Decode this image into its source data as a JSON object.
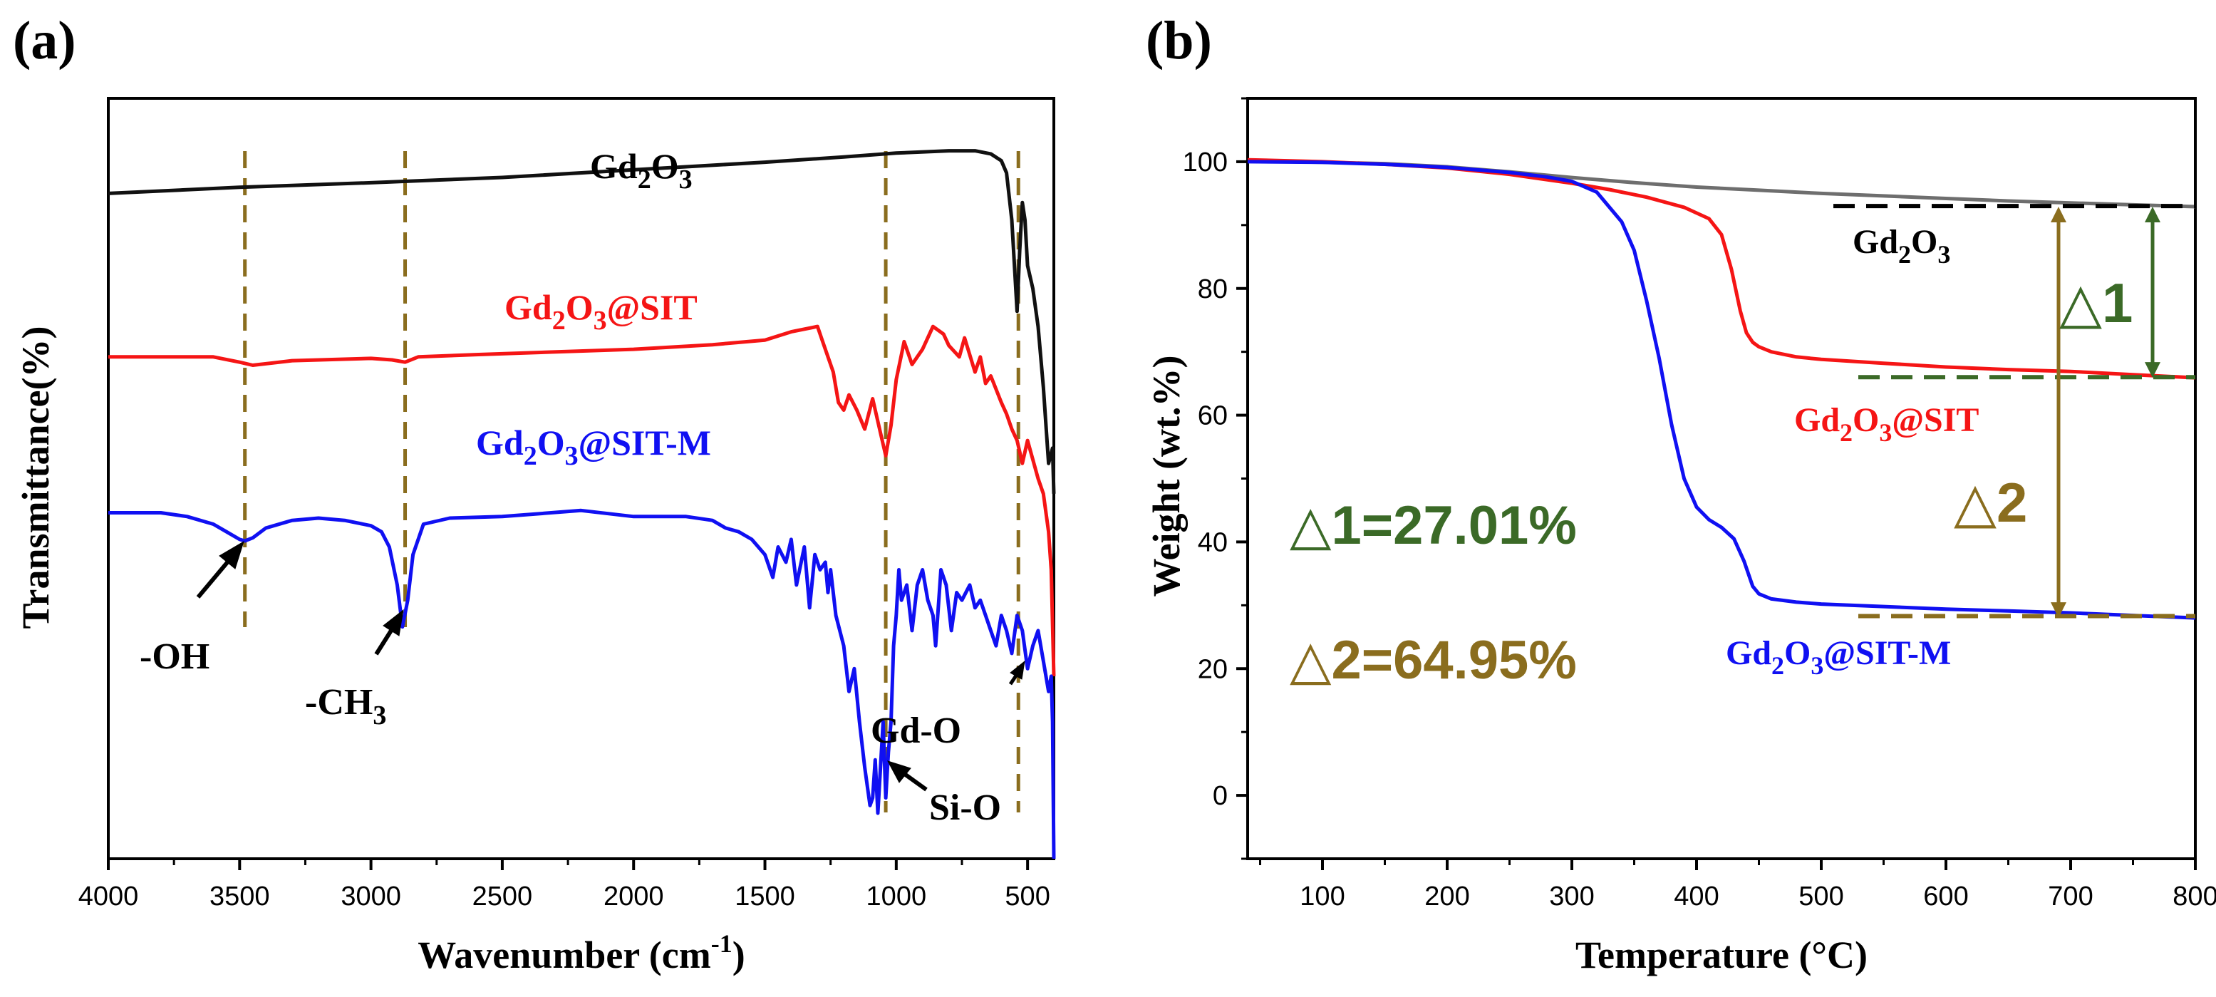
{
  "colors": {
    "black": "#111111",
    "red": "#f51515",
    "blue": "#1010f2",
    "gray": "#6e6e6e",
    "olive": "#8a6d1e",
    "green": "#3b6a27"
  },
  "chart_data": [
    {
      "type": "line",
      "panel_label": "(a)",
      "xlabel_main": "Wavenumber (cm",
      "xlabel_sup": "-1",
      "xlabel_end": ")",
      "ylabel": "Transmittance(%)",
      "xlim": [
        4000,
        400
      ],
      "x_reversed": true,
      "ylim": [
        0,
        100
      ],
      "y_ticks_shown": false,
      "xticks": [
        "4000",
        "3500",
        "3000",
        "2500",
        "2000",
        "1500",
        "1000",
        "500"
      ],
      "xtick_values": [
        4000,
        3500,
        3000,
        2500,
        2000,
        1500,
        1000,
        500
      ],
      "series": [
        {
          "name": "Gd2O3",
          "label_main": "Gd",
          "label_sub1": "2",
          "label_mid": "O",
          "label_sub2": "3",
          "label_end": "",
          "color_key": "black",
          "x": [
            4000,
            3500,
            3000,
            2500,
            2000,
            1500,
            1200,
            1000,
            800,
            700,
            640,
            600,
            580,
            560,
            540,
            530,
            520,
            510,
            500,
            480,
            460,
            440,
            420,
            405,
            400
          ],
          "y": [
            87.5,
            88.3,
            88.9,
            89.6,
            90.6,
            91.6,
            92.3,
            92.8,
            93.1,
            93.1,
            92.7,
            91.8,
            90.2,
            84,
            72,
            80,
            86.3,
            84,
            78,
            75,
            70,
            62,
            52,
            54,
            48
          ]
        },
        {
          "name": "Gd2O3@SIT",
          "label_main": "Gd",
          "label_sub1": "2",
          "label_mid": "O",
          "label_sub2": "3",
          "label_end": "@SIT",
          "color_key": "red",
          "x": [
            4000,
            3800,
            3600,
            3500,
            3450,
            3300,
            3000,
            2920,
            2870,
            2820,
            2600,
            2000,
            1700,
            1500,
            1400,
            1300,
            1280,
            1240,
            1220,
            1200,
            1180,
            1150,
            1120,
            1090,
            1060,
            1040,
            1020,
            1000,
            970,
            940,
            900,
            860,
            820,
            800,
            760,
            740,
            700,
            680,
            660,
            640,
            600,
            580,
            560,
            540,
            520,
            500,
            480,
            460,
            440,
            420,
            410,
            400
          ],
          "y": [
            66,
            66,
            66,
            65.3,
            64.9,
            65.5,
            65.8,
            65.6,
            65.3,
            66,
            66.3,
            67,
            67.6,
            68.2,
            69.3,
            70,
            68,
            64,
            60,
            59,
            61,
            59,
            56.5,
            60.5,
            56,
            53,
            57,
            63,
            68,
            65,
            67,
            70,
            69,
            67.5,
            66,
            68.5,
            64,
            66,
            62.5,
            63.5,
            60,
            58.5,
            56.5,
            55,
            52,
            55,
            52.5,
            50,
            48,
            43,
            38,
            24
          ]
        },
        {
          "name": "Gd2O3@SIT-M",
          "label_main": "Gd",
          "label_sub1": "2",
          "label_mid": "O",
          "label_sub2": "3",
          "label_end": "@SIT-M",
          "color_key": "blue",
          "x": [
            4000,
            3800,
            3700,
            3600,
            3550,
            3500,
            3480,
            3450,
            3400,
            3300,
            3200,
            3100,
            3000,
            2960,
            2930,
            2900,
            2880,
            2860,
            2840,
            2800,
            2700,
            2500,
            2200,
            2000,
            1800,
            1700,
            1650,
            1600,
            1550,
            1500,
            1470,
            1450,
            1420,
            1400,
            1380,
            1350,
            1330,
            1310,
            1290,
            1270,
            1260,
            1250,
            1230,
            1200,
            1180,
            1160,
            1140,
            1120,
            1100,
            1090,
            1080,
            1070,
            1060,
            1050,
            1040,
            1030,
            1020,
            1010,
            1000,
            990,
            980,
            960,
            940,
            920,
            900,
            880,
            860,
            850,
            830,
            810,
            790,
            770,
            750,
            720,
            700,
            680,
            660,
            640,
            620,
            600,
            580,
            560,
            540,
            520,
            500,
            480,
            460,
            440,
            420,
            410,
            405,
            400
          ],
          "y": [
            45.5,
            45.5,
            45,
            44,
            43,
            42,
            41.8,
            42.2,
            43.5,
            44.5,
            44.8,
            44.5,
            43.8,
            43,
            41,
            36,
            30.5,
            34,
            40,
            44,
            44.8,
            45,
            45.8,
            45,
            45,
            44.5,
            43.5,
            43,
            42,
            40,
            37,
            41,
            39,
            42,
            36,
            41,
            33,
            40,
            38,
            39,
            35,
            38,
            32,
            28,
            22,
            25,
            18,
            12,
            7,
            8,
            13,
            6,
            12,
            18,
            8,
            14,
            18,
            28,
            32,
            38,
            34,
            36,
            30,
            36,
            38,
            34,
            32,
            28,
            38,
            36,
            30,
            35,
            34,
            36,
            33,
            34,
            32,
            30,
            28,
            32,
            30,
            27,
            32,
            30,
            25,
            28,
            30,
            26,
            22,
            24,
            18,
            0
          ]
        }
      ],
      "annotations": {
        "oh": "-OH",
        "ch3_main": "-CH",
        "ch3_sub": "3",
        "gdo": "Gd-O",
        "sio": "Si-O"
      },
      "reference_lines_x": [
        3480,
        2870,
        1040,
        535
      ]
    },
    {
      "type": "line",
      "panel_label": "(b)",
      "xlabel_main": "Temperature (",
      "xlabel_unit": "°C",
      "xlabel_end": ")",
      "ylabel": "Weight (wt.%)",
      "xlim": [
        40,
        800
      ],
      "ylim": [
        -10,
        110
      ],
      "xticks": [
        "100",
        "200",
        "300",
        "400",
        "500",
        "600",
        "700",
        "800"
      ],
      "xtick_values": [
        100,
        200,
        300,
        400,
        500,
        600,
        700,
        800
      ],
      "yticks": [
        "0",
        "20",
        "40",
        "60",
        "80",
        "100"
      ],
      "ytick_values": [
        0,
        20,
        40,
        60,
        80,
        100
      ],
      "series": [
        {
          "name": "Gd2O3",
          "label_main": "Gd",
          "label_sub1": "2",
          "label_mid": "O",
          "label_sub2": "3",
          "label_end": "",
          "color_key": "gray",
          "x": [
            40,
            100,
            150,
            200,
            250,
            300,
            350,
            400,
            450,
            500,
            550,
            600,
            650,
            700,
            750,
            800
          ],
          "y": [
            100.1,
            99.9,
            99.7,
            99.2,
            98.4,
            97.5,
            96.7,
            96,
            95.5,
            95,
            94.6,
            94.2,
            93.8,
            93.5,
            93.2,
            92.9
          ]
        },
        {
          "name": "Gd2O3@SIT",
          "label_main": "Gd",
          "label_sub1": "2",
          "label_mid": "O",
          "label_sub2": "3",
          "label_end": "@SIT",
          "color_key": "red",
          "x": [
            40,
            100,
            150,
            200,
            250,
            300,
            330,
            360,
            390,
            410,
            420,
            428,
            435,
            440,
            445,
            450,
            460,
            480,
            500,
            550,
            600,
            650,
            700,
            750,
            800
          ],
          "y": [
            100.3,
            100,
            99.6,
            99,
            98,
            96.6,
            95.6,
            94.4,
            92.8,
            91,
            88.5,
            83,
            76.5,
            73,
            71.5,
            70.8,
            70,
            69.2,
            68.8,
            68.2,
            67.6,
            67.2,
            66.9,
            66.4,
            65.9
          ]
        },
        {
          "name": "Gd2O3@SIT-M",
          "label_main": "Gd",
          "label_sub1": "2",
          "label_mid": "O",
          "label_sub2": "3",
          "label_end": "@SIT-M",
          "color_key": "blue",
          "x": [
            40,
            100,
            150,
            200,
            250,
            280,
            300,
            320,
            340,
            350,
            360,
            370,
            380,
            390,
            400,
            410,
            420,
            430,
            438,
            445,
            450,
            460,
            480,
            500,
            550,
            600,
            650,
            700,
            750,
            800
          ],
          "y": [
            100,
            99.9,
            99.6,
            99.1,
            98.3,
            97.6,
            96.9,
            95.2,
            90.5,
            86,
            78,
            69,
            58.5,
            50,
            45.5,
            43.5,
            42.3,
            40.5,
            37,
            33,
            31.8,
            31,
            30.5,
            30.2,
            29.8,
            29.4,
            29.1,
            28.8,
            28.4,
            28
          ]
        }
      ],
      "annotations": {
        "d1_label": "△1",
        "d2_label": "△2",
        "d1_text": "△1=27.01%",
        "d2_text": "△2=64.95%"
      },
      "delta1_values": [
        92.9,
        65.9
      ],
      "delta2_values": [
        92.9,
        28
      ],
      "dashed_levels": {
        "gd2o3": 93,
        "sit": 66,
        "sit_m": 28.3
      }
    }
  ]
}
